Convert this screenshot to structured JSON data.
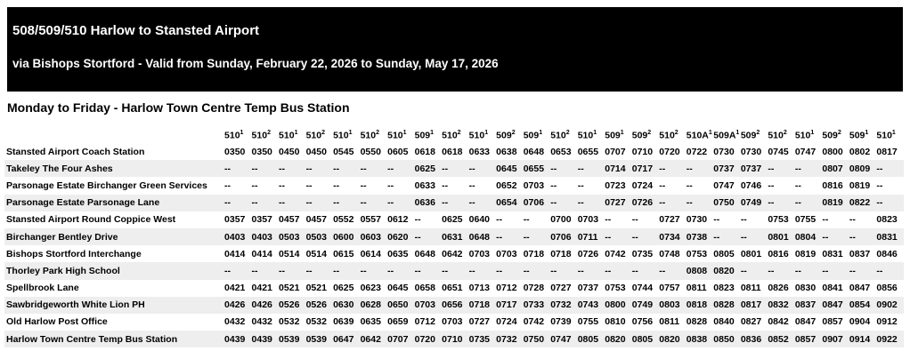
{
  "header": {
    "title": "508/509/510 Harlow to Stansted Airport",
    "subtitle": "via Bishops Stortford - Valid from Sunday, February 22, 2026 to Sunday, May 17, 2026"
  },
  "section": {
    "title": "Monday to Friday - Harlow Town Centre Temp Bus Station"
  },
  "table": {
    "columns": [
      {
        "route": "510",
        "note": "1"
      },
      {
        "route": "510",
        "note": "2"
      },
      {
        "route": "510",
        "note": "1"
      },
      {
        "route": "510",
        "note": "2"
      },
      {
        "route": "510",
        "note": "1"
      },
      {
        "route": "510",
        "note": "2"
      },
      {
        "route": "510",
        "note": "1"
      },
      {
        "route": "509",
        "note": "1"
      },
      {
        "route": "510",
        "note": "2"
      },
      {
        "route": "510",
        "note": "1"
      },
      {
        "route": "509",
        "note": "2"
      },
      {
        "route": "509",
        "note": "1"
      },
      {
        "route": "510",
        "note": "2"
      },
      {
        "route": "510",
        "note": "1"
      },
      {
        "route": "509",
        "note": "1"
      },
      {
        "route": "509",
        "note": "2"
      },
      {
        "route": "510",
        "note": "2"
      },
      {
        "route": "510A",
        "note": "1"
      },
      {
        "route": "509A",
        "note": "1"
      },
      {
        "route": "509",
        "note": "2"
      },
      {
        "route": "510",
        "note": "2"
      },
      {
        "route": "510",
        "note": "1"
      },
      {
        "route": "509",
        "note": "2"
      },
      {
        "route": "509",
        "note": "1"
      },
      {
        "route": "510",
        "note": "1"
      }
    ],
    "rows": [
      {
        "stop": "Stansted Airport Coach Station",
        "times": [
          "0350",
          "0350",
          "0450",
          "0450",
          "0545",
          "0550",
          "0605",
          "0618",
          "0618",
          "0633",
          "0638",
          "0648",
          "0653",
          "0655",
          "0707",
          "0710",
          "0720",
          "0722",
          "0730",
          "0730",
          "0745",
          "0747",
          "0800",
          "0802",
          "0817"
        ]
      },
      {
        "stop": "Takeley The Four Ashes",
        "times": [
          "--",
          "--",
          "--",
          "--",
          "--",
          "--",
          "--",
          "0625",
          "--",
          "--",
          "0645",
          "0655",
          "--",
          "--",
          "0714",
          "0717",
          "--",
          "--",
          "0737",
          "0737",
          "--",
          "--",
          "0807",
          "0809",
          "--"
        ]
      },
      {
        "stop": "Parsonage Estate Birchanger Green Services",
        "times": [
          "--",
          "--",
          "--",
          "--",
          "--",
          "--",
          "--",
          "0633",
          "--",
          "--",
          "0652",
          "0703",
          "--",
          "--",
          "0723",
          "0724",
          "--",
          "--",
          "0747",
          "0746",
          "--",
          "--",
          "0816",
          "0819",
          "--"
        ]
      },
      {
        "stop": "Parsonage Estate Parsonage Lane",
        "times": [
          "--",
          "--",
          "--",
          "--",
          "--",
          "--",
          "--",
          "0636",
          "--",
          "--",
          "0654",
          "0706",
          "--",
          "--",
          "0727",
          "0726",
          "--",
          "--",
          "0750",
          "0749",
          "--",
          "--",
          "0819",
          "0822",
          "--"
        ]
      },
      {
        "stop": "Stansted Airport Round Coppice West",
        "times": [
          "0357",
          "0357",
          "0457",
          "0457",
          "0552",
          "0557",
          "0612",
          "--",
          "0625",
          "0640",
          "--",
          "--",
          "0700",
          "0703",
          "--",
          "--",
          "0727",
          "0730",
          "--",
          "--",
          "0753",
          "0755",
          "--",
          "--",
          "0823"
        ]
      },
      {
        "stop": "Birchanger Bentley Drive",
        "times": [
          "0403",
          "0403",
          "0503",
          "0503",
          "0600",
          "0603",
          "0620",
          "--",
          "0631",
          "0648",
          "--",
          "--",
          "0706",
          "0711",
          "--",
          "--",
          "0734",
          "0738",
          "--",
          "--",
          "0801",
          "0804",
          "--",
          "--",
          "0831"
        ]
      },
      {
        "stop": "Bishops Stortford Interchange",
        "times": [
          "0414",
          "0414",
          "0514",
          "0514",
          "0615",
          "0614",
          "0635",
          "0648",
          "0642",
          "0703",
          "0703",
          "0718",
          "0718",
          "0726",
          "0742",
          "0735",
          "0748",
          "0753",
          "0805",
          "0801",
          "0816",
          "0819",
          "0831",
          "0837",
          "0846"
        ]
      },
      {
        "stop": "Thorley Park High School",
        "times": [
          "--",
          "--",
          "--",
          "--",
          "--",
          "--",
          "--",
          "--",
          "--",
          "--",
          "--",
          "--",
          "--",
          "--",
          "--",
          "--",
          "--",
          "0808",
          "0820",
          "--",
          "--",
          "--",
          "--",
          "--",
          "--"
        ]
      },
      {
        "stop": "Spellbrook Lane",
        "times": [
          "0421",
          "0421",
          "0521",
          "0521",
          "0625",
          "0623",
          "0645",
          "0658",
          "0651",
          "0713",
          "0712",
          "0728",
          "0727",
          "0737",
          "0753",
          "0744",
          "0757",
          "0811",
          "0823",
          "0811",
          "0826",
          "0830",
          "0841",
          "0847",
          "0856"
        ]
      },
      {
        "stop": "Sawbridgeworth White Lion PH",
        "times": [
          "0426",
          "0426",
          "0526",
          "0526",
          "0630",
          "0628",
          "0650",
          "0703",
          "0656",
          "0718",
          "0717",
          "0733",
          "0732",
          "0743",
          "0800",
          "0749",
          "0803",
          "0818",
          "0828",
          "0817",
          "0832",
          "0837",
          "0847",
          "0854",
          "0902"
        ]
      },
      {
        "stop": "Old Harlow Post Office",
        "times": [
          "0432",
          "0432",
          "0532",
          "0532",
          "0639",
          "0635",
          "0659",
          "0712",
          "0703",
          "0727",
          "0724",
          "0742",
          "0739",
          "0755",
          "0810",
          "0756",
          "0811",
          "0828",
          "0840",
          "0827",
          "0842",
          "0847",
          "0857",
          "0904",
          "0912"
        ]
      },
      {
        "stop": "Harlow Town Centre Temp Bus Station",
        "times": [
          "0439",
          "0439",
          "0539",
          "0539",
          "0647",
          "0642",
          "0707",
          "0720",
          "0710",
          "0735",
          "0732",
          "0750",
          "0747",
          "0805",
          "0820",
          "0805",
          "0820",
          "0838",
          "0850",
          "0836",
          "0852",
          "0857",
          "0907",
          "0914",
          "0922"
        ]
      }
    ]
  }
}
